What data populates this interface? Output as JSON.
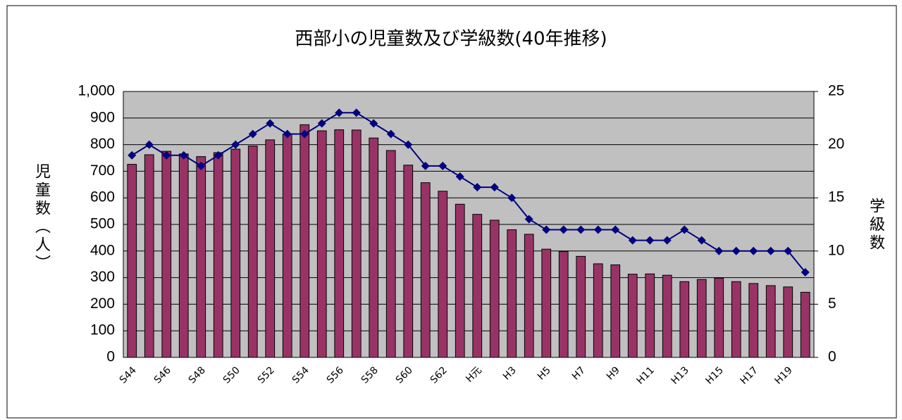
{
  "chart_data": {
    "type": "bar",
    "title": "西部小の児童数及び学級数(40年推移)",
    "y_label": "児童数（人）",
    "y2_label": "学級数",
    "categories": [
      "S44",
      null,
      "S46",
      null,
      "S48",
      null,
      "S50",
      null,
      "S52",
      null,
      "S54",
      null,
      "S56",
      null,
      "S58",
      null,
      "S60",
      null,
      "S62",
      null,
      "H元",
      null,
      "H3",
      null,
      "H5",
      null,
      "H7",
      null,
      "H9",
      null,
      "H11",
      null,
      "H13",
      null,
      "H15",
      null,
      "H17",
      null,
      "H19",
      null
    ],
    "series": [
      {
        "type": "bar",
        "color": "#993366",
        "values": [
          726,
          762,
          775,
          765,
          755,
          770,
          783,
          795,
          818,
          840,
          875,
          852,
          856,
          855,
          825,
          778,
          723,
          657,
          625,
          576,
          538,
          516,
          480,
          463,
          407,
          398,
          380,
          352,
          348,
          313,
          314,
          309,
          285,
          293,
          298,
          285,
          278,
          270,
          265,
          245
        ]
      },
      {
        "type": "line",
        "axis": "y2",
        "color": "#000080",
        "values": [
          19,
          20,
          19,
          19,
          18,
          19,
          20,
          21,
          22,
          21,
          21,
          22,
          23,
          23,
          22,
          21,
          20,
          18,
          18,
          17,
          16,
          16,
          15,
          13,
          12,
          12,
          12,
          12,
          12,
          11,
          11,
          11,
          12,
          11,
          10,
          10,
          10,
          10,
          10,
          8
        ]
      }
    ],
    "ylim": [
      0,
      1000
    ],
    "yticks": [
      0,
      100,
      200,
      300,
      400,
      500,
      600,
      700,
      800,
      900,
      {
        "value": 1000,
        "label": "1,000"
      }
    ],
    "y2lim": [
      0,
      25
    ],
    "y2ticks": [
      0,
      5,
      10,
      15,
      20,
      25
    ],
    "grid": true,
    "plot_background": "#c0c0c0"
  }
}
